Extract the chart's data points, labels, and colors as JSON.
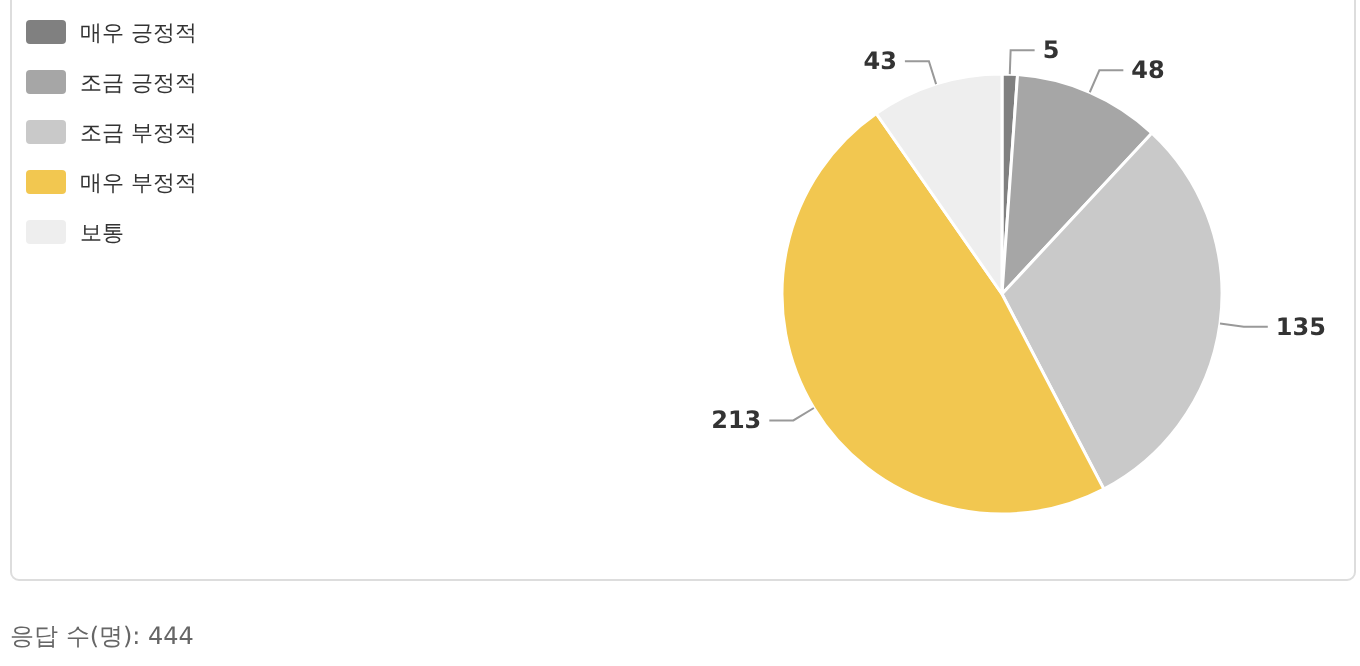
{
  "chart_data": {
    "type": "pie",
    "categories": [
      "매우 긍정적",
      "조금 긍정적",
      "조금 부정적",
      "매우 부정적",
      "보통"
    ],
    "values": [
      5,
      48,
      135,
      213,
      43
    ],
    "colors": [
      "#808080",
      "#a6a6a6",
      "#c9c9c9",
      "#f2c750",
      "#eeeeee"
    ],
    "data_labels": true,
    "legend": "top left",
    "annotations": [
      "응답 수(명): 444"
    ]
  }
}
